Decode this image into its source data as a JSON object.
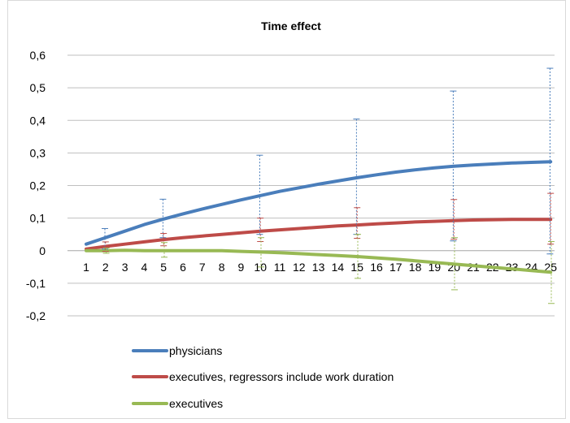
{
  "chart_data": {
    "type": "line",
    "title": "Time effect",
    "xlabel": "",
    "ylabel": "",
    "x": [
      1,
      2,
      3,
      4,
      5,
      6,
      7,
      8,
      9,
      10,
      11,
      12,
      13,
      14,
      15,
      16,
      17,
      18,
      19,
      20,
      21,
      22,
      23,
      24,
      25
    ],
    "ylim": [
      -0.2,
      0.6
    ],
    "yticks": [
      "0,6",
      "0,5",
      "0,4",
      "0,3",
      "0,2",
      "0,1",
      "0",
      "-0,1",
      "-0,2"
    ],
    "ytick_values": [
      0.6,
      0.5,
      0.4,
      0.3,
      0.2,
      0.1,
      0,
      -0.1,
      -0.2
    ],
    "grid": true,
    "legend_position": "bottom",
    "series": [
      {
        "name": "physicians",
        "color": "#4a7ebb",
        "values": [
          0.02,
          0.04,
          0.06,
          0.08,
          0.097,
          0.113,
          0.128,
          0.142,
          0.156,
          0.169,
          0.182,
          0.193,
          0.204,
          0.214,
          0.224,
          0.233,
          0.241,
          0.248,
          0.254,
          0.259,
          0.263,
          0.266,
          0.269,
          0.271,
          0.273
        ],
        "error_bars": [
          {
            "x": 2,
            "low": 0.005,
            "high": 0.068
          },
          {
            "x": 5,
            "low": 0.04,
            "high": 0.158
          },
          {
            "x": 10,
            "low": 0.05,
            "high": 0.293
          },
          {
            "x": 15,
            "low": 0.05,
            "high": 0.404
          },
          {
            "x": 20,
            "low": 0.03,
            "high": 0.49
          },
          {
            "x": 25,
            "low": -0.01,
            "high": 0.56
          }
        ]
      },
      {
        "name": "executives, regressors include work duration",
        "color": "#be4b48",
        "values": [
          0.005,
          0.013,
          0.02,
          0.027,
          0.034,
          0.04,
          0.045,
          0.05,
          0.055,
          0.06,
          0.064,
          0.068,
          0.072,
          0.076,
          0.079,
          0.082,
          0.085,
          0.088,
          0.09,
          0.092,
          0.094,
          0.095,
          0.096,
          0.096,
          0.096
        ],
        "error_bars": [
          {
            "x": 2,
            "low": -0.002,
            "high": 0.027
          },
          {
            "x": 5,
            "low": 0.015,
            "high": 0.053
          },
          {
            "x": 10,
            "low": 0.028,
            "high": 0.1
          },
          {
            "x": 15,
            "low": 0.038,
            "high": 0.132
          },
          {
            "x": 20,
            "low": 0.035,
            "high": 0.157
          },
          {
            "x": 25,
            "low": 0.02,
            "high": 0.176
          }
        ]
      },
      {
        "name": "executives",
        "color": "#98b954",
        "values": [
          0.0,
          0.0,
          0.001,
          0.0,
          0.0,
          0.0,
          0.0,
          0.0,
          -0.002,
          -0.004,
          -0.006,
          -0.009,
          -0.012,
          -0.015,
          -0.018,
          -0.022,
          -0.026,
          -0.031,
          -0.036,
          -0.041,
          -0.046,
          -0.051,
          -0.056,
          -0.061,
          -0.066
        ],
        "error_bars": [
          {
            "x": 2,
            "low": -0.008,
            "high": 0.008
          },
          {
            "x": 5,
            "low": -0.02,
            "high": 0.025
          },
          {
            "x": 10,
            "low": -0.05,
            "high": 0.04
          },
          {
            "x": 15,
            "low": -0.085,
            "high": 0.05
          },
          {
            "x": 20,
            "low": -0.12,
            "high": 0.04
          },
          {
            "x": 25,
            "low": -0.162,
            "high": 0.028
          }
        ]
      }
    ]
  }
}
